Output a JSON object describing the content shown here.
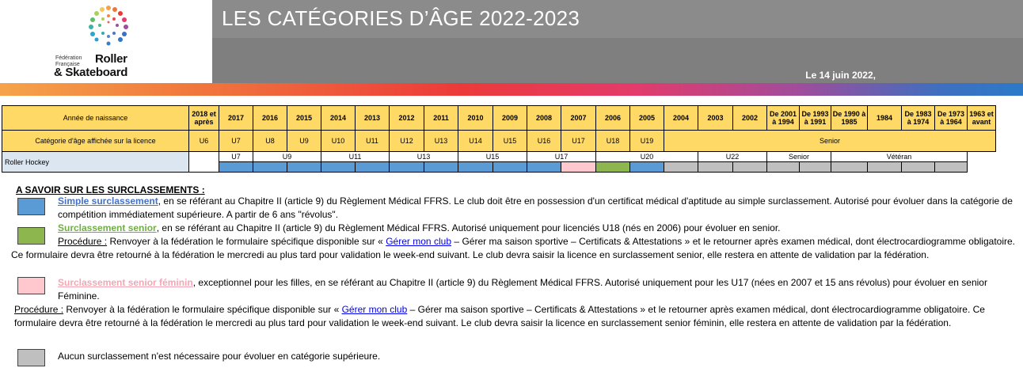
{
  "logo": {
    "line1": "Fédération",
    "line2": "Française",
    "word1": "Roller",
    "word2": "& Skateboard"
  },
  "header": {
    "title": "LES CATÉGORIES D’ÂGE 2022-2023",
    "date": "Le 14 juin 2022,"
  },
  "table": {
    "birth_label": "Année de naissance",
    "years": [
      "2018 et après",
      "2017",
      "2016",
      "2015",
      "2014",
      "2013",
      "2012",
      "2011",
      "2010",
      "2009",
      "2008",
      "2007",
      "2006",
      "2005",
      "2004",
      "2003",
      "2002",
      "De 2001 à 1994",
      "De 1993 à 1991",
      "De 1990 à 1985",
      "1984",
      "De 1983 à 1974",
      "De 1973 à 1964",
      "1963 et avant"
    ],
    "cat_label": "Catégorie d'âge affichée sur la licence",
    "cats": [
      "U6",
      "U7",
      "U8",
      "U9",
      "U10",
      "U11",
      "U12",
      "U13",
      "U14",
      "U15",
      "U16",
      "U17",
      "U18",
      "U19",
      "Senior"
    ],
    "sport_label": "Roller Hockey",
    "hockey_cats": [
      "U7",
      "U9",
      "U11",
      "U13",
      "U15",
      "U17",
      "U20",
      "U22",
      "Senior",
      "Vétéran"
    ]
  },
  "notes": {
    "heading": "A SAVOIR SUR LES SURCLASSEMENTS :",
    "simple_link": "Simple surclassement",
    "simple_text": ", en se référant au Chapitre II (article 9) du Règlement Médical FFRS. Le club doit être en possession d'un certificat médical d'aptitude au simple surclassement. Autorisé pour évoluer dans la catégorie de compétition immédiatement supérieure. A partir de 6 ans \"révolus\".",
    "senior_link": "Surclassement senior",
    "senior_text": ", en se référant au Chapitre II (article 9) du Règlement Médical FFRS. Autorisé uniquement pour licenciés U18 (nés en 2006) pour évoluer en senior.",
    "procedure": "Procédure :",
    "proc_a": " Renvoyer à la fédération le formulaire spécifique disponible sur « ",
    "gerer": "Gérer mon club",
    "proc_b": " – Gérer ma saison sportive – Certificats & Attestations » et le retourner après examen médical, dont électrocardiogramme obligatoire. Ce formulaire devra être retourné à la fédération le mercredi au plus tard pour validation le week-end suivant. Le club devra saisir la licence en surclassement senior, elle restera en attente de validation par la fédération.",
    "fem_link": "Surclassement senior féminin",
    "fem_text": ", exceptionnel pour les filles, en se référant au Chapitre II (article 9) du Règlement Médical FFRS. Autorisé uniquement pour les U17 (nées en 2007 et 15 ans révolus) pour évoluer en senior Féminine.",
    "proc_b2": " – Gérer ma saison sportive – Certificats & Attestations » et le retourner après examen médical, dont électrocardiogramme obligatoire. Ce formulaire devra être retourné à la fédération le mercredi au plus tard pour validation le week-end suivant. Le club devra saisir la licence en surclassement senior féminin, elle restera en attente de validation par la fédération.",
    "none_text": "Aucun surclassement n'est nécessaire pour évoluer en catégorie supérieure."
  },
  "colors": {
    "simple": "#5b9bd5",
    "senior": "#8db64f",
    "feminin": "#ffc7ce",
    "none": "#bfbfbf",
    "header_bg": "#ffd966"
  }
}
